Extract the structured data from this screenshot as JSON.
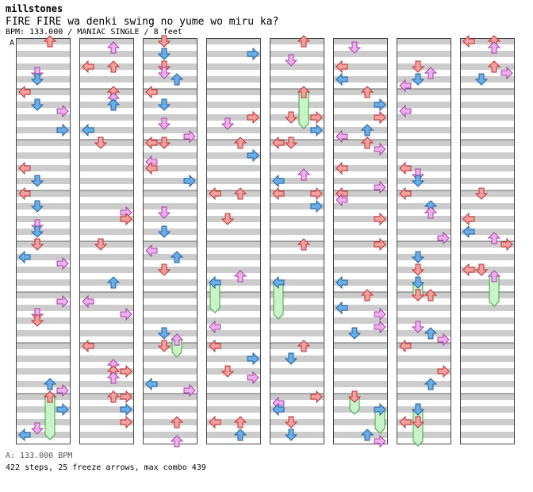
{
  "header": {
    "artist": "millstones",
    "title": "FIRE FIRE wa denki swing no yume wo miru ka?",
    "meta": "BPM: 133.000 / MANIAC SINGLE / 8 feet",
    "bpm_marker": "A"
  },
  "footer": {
    "bpm_legend": "A: 133.000 BPM",
    "stats": "422 steps, 25 freeze arrows, max combo 439"
  },
  "colors": {
    "quarter": "#f4a0a0",
    "quarter_stroke": "#c03030",
    "eighth": "#6aaee8",
    "eighth_stroke": "#2060a0",
    "sixteenth": "#f0b0f0",
    "sixteenth_stroke": "#a040a0",
    "freeze": "#c8f5c8",
    "freeze_stroke": "#40a040",
    "stripe": "#cccccc"
  },
  "chart_data": {
    "type": "stepchart",
    "columns": 8,
    "measures_per_column": 8,
    "lanes": [
      "left",
      "down",
      "up",
      "right"
    ],
    "bpm": 133.0,
    "difficulty": "MANIAC SINGLE",
    "feet": 8,
    "steps": 422,
    "freeze_arrows": 25,
    "max_combo": 439,
    "arrow_color_key": {
      "quarter": "red",
      "eighth": "blue",
      "sixteenth": "pink"
    }
  }
}
